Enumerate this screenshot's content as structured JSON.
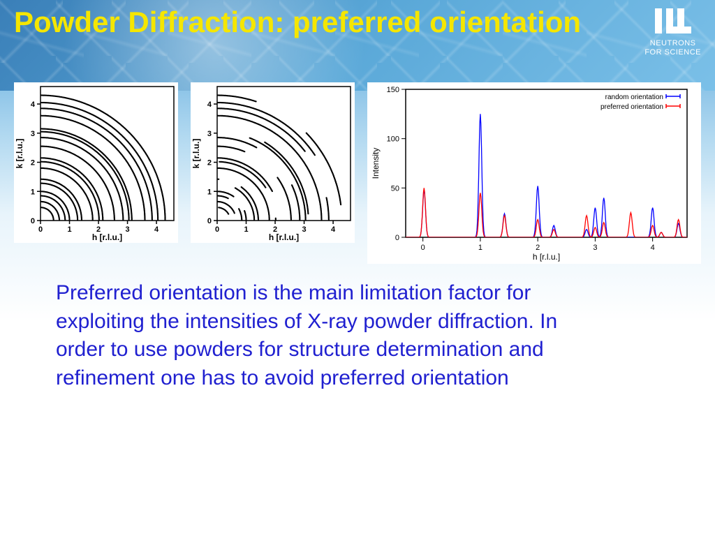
{
  "title": "Powder Diffraction: preferred orientation",
  "logo": {
    "line1": "NEUTRONS",
    "line2": "FOR SCIENCE"
  },
  "body_text": "Preferred orientation is the main limitation factor for exploiting the intensities of X-ray powder diffraction. In order to use powders for structure determination and refinement one has to avoid preferred orientation",
  "ring_plot": {
    "type": "ring-scatter",
    "xlabel": "h [r.l.u.]",
    "ylabel": "k [r.l.u.]",
    "xlim": [
      0,
      4.6
    ],
    "ylim": [
      0,
      4.6
    ],
    "xticks": [
      0,
      1,
      2,
      3,
      4
    ],
    "yticks": [
      0,
      1,
      2,
      3,
      4
    ],
    "ring_radii": [
      0.45,
      0.65,
      0.85,
      1.0,
      1.28,
      1.42,
      1.8,
      2.02,
      2.15,
      2.55,
      2.85,
      3.05,
      3.15,
      3.6,
      3.85,
      4.05,
      4.3
    ],
    "ring_color": "#000000",
    "background_color": "#ffffff",
    "axis_fontsize": 11
  },
  "intensity_plot": {
    "type": "line",
    "xlabel": "h [r.l.u.]",
    "ylabel": "Intensity",
    "xlim": [
      -0.3,
      4.6
    ],
    "ylim": [
      0,
      150
    ],
    "xticks": [
      0,
      1,
      2,
      3,
      4
    ],
    "yticks": [
      0,
      50,
      100,
      150
    ],
    "legend": [
      "random orientation",
      "preferred orientation"
    ],
    "legend_colors": [
      "#0000ff",
      "#ff0000"
    ],
    "background_color": "#ffffff",
    "axis_color": "#000000",
    "axis_fontsize": 11,
    "peaks_random": [
      {
        "x": 0.02,
        "h": 48
      },
      {
        "x": 1.0,
        "h": 125
      },
      {
        "x": 1.42,
        "h": 24
      },
      {
        "x": 2.0,
        "h": 52
      },
      {
        "x": 2.28,
        "h": 12
      },
      {
        "x": 2.85,
        "h": 8
      },
      {
        "x": 3.0,
        "h": 30
      },
      {
        "x": 3.15,
        "h": 40
      },
      {
        "x": 4.0,
        "h": 30
      },
      {
        "x": 4.15,
        "h": 5
      },
      {
        "x": 4.45,
        "h": 14
      }
    ],
    "peaks_preferred": [
      {
        "x": 0.02,
        "h": 50
      },
      {
        "x": 1.0,
        "h": 45
      },
      {
        "x": 1.42,
        "h": 22
      },
      {
        "x": 2.0,
        "h": 18
      },
      {
        "x": 2.28,
        "h": 8
      },
      {
        "x": 2.85,
        "h": 22
      },
      {
        "x": 3.0,
        "h": 10
      },
      {
        "x": 3.15,
        "h": 15
      },
      {
        "x": 3.62,
        "h": 25
      },
      {
        "x": 4.0,
        "h": 12
      },
      {
        "x": 4.15,
        "h": 5
      },
      {
        "x": 4.45,
        "h": 18
      }
    ],
    "peak_halfwidth": 0.035
  },
  "colors": {
    "title": "#f5e600",
    "body": "#2020d0",
    "header_grad_a": "#3a7fb8",
    "header_grad_b": "#7bc0e8"
  }
}
